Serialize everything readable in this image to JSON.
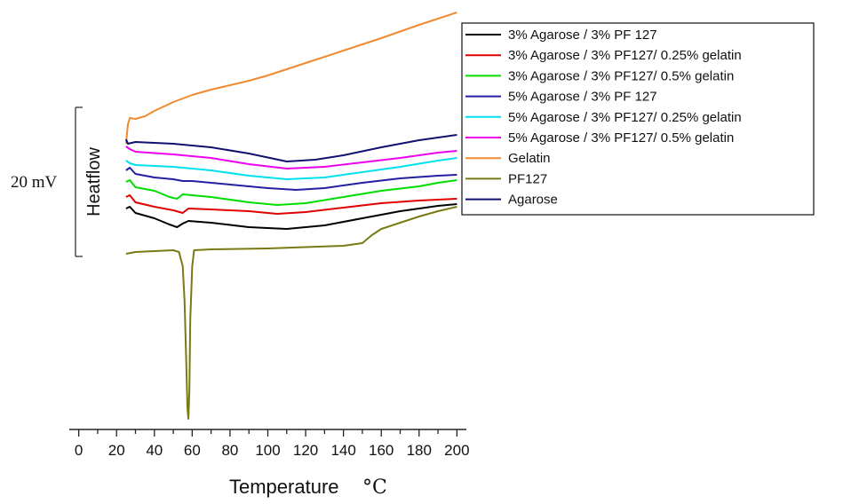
{
  "chart_data": {
    "type": "line",
    "xlabel": "Temperature",
    "xlabel_unit": "°C",
    "ylabel": "Heatflow",
    "scale_bar_label": "20 mV",
    "xlim": [
      -5,
      205
    ],
    "x_ticks": [
      0,
      20,
      40,
      60,
      80,
      100,
      120,
      140,
      160,
      180,
      200
    ],
    "grid": false,
    "legend_position": "top-right",
    "y_units": "offset signal (stacked curves)",
    "series": [
      {
        "name": "3% Agarose / 3% PF 127",
        "color": "#000000",
        "points": [
          [
            25,
            235
          ],
          [
            27,
            233
          ],
          [
            30,
            240
          ],
          [
            40,
            246
          ],
          [
            48,
            253
          ],
          [
            52,
            256
          ],
          [
            55,
            252
          ],
          [
            58,
            249
          ],
          [
            70,
            251
          ],
          [
            90,
            256
          ],
          [
            110,
            258
          ],
          [
            130,
            254
          ],
          [
            150,
            246
          ],
          [
            170,
            238
          ],
          [
            190,
            232
          ],
          [
            200,
            230
          ]
        ]
      },
      {
        "name": "3% Agarose / 3% PF127/ 0.25% gelatin",
        "color": "#e00000",
        "points": [
          [
            25,
            222
          ],
          [
            27,
            220
          ],
          [
            30,
            228
          ],
          [
            40,
            233
          ],
          [
            50,
            237
          ],
          [
            55,
            240
          ],
          [
            58,
            235
          ],
          [
            70,
            236
          ],
          [
            90,
            238
          ],
          [
            105,
            241
          ],
          [
            120,
            239
          ],
          [
            140,
            234
          ],
          [
            160,
            229
          ],
          [
            180,
            226
          ],
          [
            200,
            224
          ]
        ]
      },
      {
        "name": "3% Agarose / 3% PF127/ 0.5% gelatin",
        "color": "#00dd00",
        "points": [
          [
            25,
            205
          ],
          [
            27,
            203
          ],
          [
            30,
            211
          ],
          [
            40,
            215
          ],
          [
            48,
            222
          ],
          [
            52,
            224
          ],
          [
            55,
            219
          ],
          [
            70,
            222
          ],
          [
            90,
            228
          ],
          [
            105,
            231
          ],
          [
            120,
            229
          ],
          [
            140,
            222
          ],
          [
            160,
            215
          ],
          [
            180,
            210
          ],
          [
            190,
            206
          ],
          [
            200,
            203
          ]
        ]
      },
      {
        "name": "5% Agarose / 3% PF 127",
        "color": "#2020a0",
        "points": [
          [
            25,
            192
          ],
          [
            27,
            189
          ],
          [
            30,
            196
          ],
          [
            40,
            200
          ],
          [
            50,
            202
          ],
          [
            55,
            204
          ],
          [
            60,
            204
          ],
          [
            80,
            208
          ],
          [
            100,
            212
          ],
          [
            115,
            214
          ],
          [
            130,
            212
          ],
          [
            150,
            206
          ],
          [
            170,
            201
          ],
          [
            190,
            198
          ],
          [
            200,
            197
          ]
        ]
      },
      {
        "name": "5% Agarose / 3% PF127/ 0.25% gelatin",
        "color": "#00e0ee",
        "points": [
          [
            25,
            181
          ],
          [
            27,
            184
          ],
          [
            30,
            186
          ],
          [
            50,
            188
          ],
          [
            70,
            192
          ],
          [
            90,
            198
          ],
          [
            110,
            202
          ],
          [
            130,
            200
          ],
          [
            150,
            194
          ],
          [
            170,
            188
          ],
          [
            190,
            181
          ],
          [
            200,
            178
          ]
        ]
      },
      {
        "name": "5% Agarose / 3% PF127/ 0.5% gelatin",
        "color": "#ee00ee",
        "points": [
          [
            25,
            165
          ],
          [
            27,
            168
          ],
          [
            30,
            171
          ],
          [
            50,
            174
          ],
          [
            70,
            178
          ],
          [
            90,
            185
          ],
          [
            110,
            190
          ],
          [
            130,
            188
          ],
          [
            150,
            183
          ],
          [
            170,
            178
          ],
          [
            190,
            172
          ],
          [
            200,
            170
          ]
        ]
      },
      {
        "name": "Gelatin",
        "color": "#f08a30",
        "points": [
          [
            25,
            162
          ],
          [
            26,
            140
          ],
          [
            27,
            133
          ],
          [
            30,
            134
          ],
          [
            35,
            131
          ],
          [
            40,
            125
          ],
          [
            50,
            115
          ],
          [
            60,
            107
          ],
          [
            70,
            101
          ],
          [
            80,
            96
          ],
          [
            90,
            91
          ],
          [
            100,
            85
          ],
          [
            120,
            71
          ],
          [
            140,
            57
          ],
          [
            160,
            43
          ],
          [
            180,
            28
          ],
          [
            200,
            14
          ]
        ]
      },
      {
        "name": "PF127",
        "color": "#7a7a14",
        "points": [
          [
            25,
            286
          ],
          [
            30,
            284
          ],
          [
            40,
            283
          ],
          [
            50,
            282
          ],
          [
            53,
            284
          ],
          [
            55,
            300
          ],
          [
            56,
            340
          ],
          [
            57,
            420
          ],
          [
            57.5,
            460
          ],
          [
            58,
            472
          ],
          [
            58.5,
            440
          ],
          [
            59,
            360
          ],
          [
            60,
            300
          ],
          [
            61,
            282
          ],
          [
            70,
            281
          ],
          [
            100,
            280
          ],
          [
            140,
            277
          ],
          [
            150,
            274
          ],
          [
            155,
            265
          ],
          [
            160,
            258
          ],
          [
            170,
            251
          ],
          [
            180,
            244
          ],
          [
            190,
            238
          ],
          [
            200,
            233
          ]
        ]
      },
      {
        "name": "Agarose",
        "color": "#101070",
        "points": [
          [
            25,
            157
          ],
          [
            26,
            162
          ],
          [
            30,
            160
          ],
          [
            50,
            162
          ],
          [
            70,
            166
          ],
          [
            90,
            173
          ],
          [
            110,
            182
          ],
          [
            125,
            180
          ],
          [
            140,
            175
          ],
          [
            160,
            166
          ],
          [
            180,
            158
          ],
          [
            200,
            152
          ]
        ]
      }
    ]
  }
}
